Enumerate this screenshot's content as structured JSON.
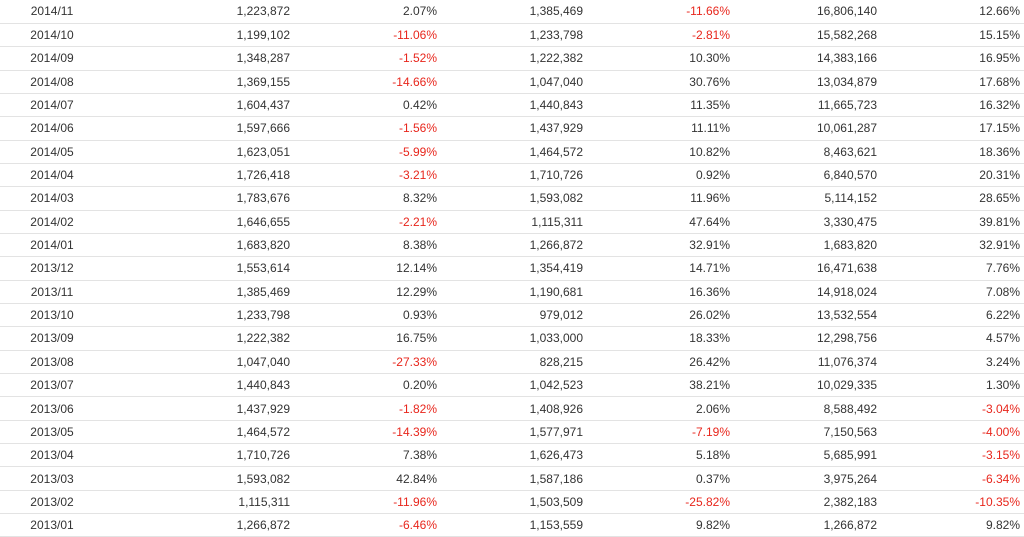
{
  "table": {
    "rows": [
      [
        "2014/11",
        "1,223,872",
        "2.07%",
        "1,385,469",
        "-11.66%",
        "16,806,140",
        "12.66%"
      ],
      [
        "2014/10",
        "1,199,102",
        "-11.06%",
        "1,233,798",
        "-2.81%",
        "15,582,268",
        "15.15%"
      ],
      [
        "2014/09",
        "1,348,287",
        "-1.52%",
        "1,222,382",
        "10.30%",
        "14,383,166",
        "16.95%"
      ],
      [
        "2014/08",
        "1,369,155",
        "-14.66%",
        "1,047,040",
        "30.76%",
        "13,034,879",
        "17.68%"
      ],
      [
        "2014/07",
        "1,604,437",
        "0.42%",
        "1,440,843",
        "11.35%",
        "11,665,723",
        "16.32%"
      ],
      [
        "2014/06",
        "1,597,666",
        "-1.56%",
        "1,437,929",
        "11.11%",
        "10,061,287",
        "17.15%"
      ],
      [
        "2014/05",
        "1,623,051",
        "-5.99%",
        "1,464,572",
        "10.82%",
        "8,463,621",
        "18.36%"
      ],
      [
        "2014/04",
        "1,726,418",
        "-3.21%",
        "1,710,726",
        "0.92%",
        "6,840,570",
        "20.31%"
      ],
      [
        "2014/03",
        "1,783,676",
        "8.32%",
        "1,593,082",
        "11.96%",
        "5,114,152",
        "28.65%"
      ],
      [
        "2014/02",
        "1,646,655",
        "-2.21%",
        "1,115,311",
        "47.64%",
        "3,330,475",
        "39.81%"
      ],
      [
        "2014/01",
        "1,683,820",
        "8.38%",
        "1,266,872",
        "32.91%",
        "1,683,820",
        "32.91%"
      ],
      [
        "2013/12",
        "1,553,614",
        "12.14%",
        "1,354,419",
        "14.71%",
        "16,471,638",
        "7.76%"
      ],
      [
        "2013/11",
        "1,385,469",
        "12.29%",
        "1,190,681",
        "16.36%",
        "14,918,024",
        "7.08%"
      ],
      [
        "2013/10",
        "1,233,798",
        "0.93%",
        "979,012",
        "26.02%",
        "13,532,554",
        "6.22%"
      ],
      [
        "2013/09",
        "1,222,382",
        "16.75%",
        "1,033,000",
        "18.33%",
        "12,298,756",
        "4.57%"
      ],
      [
        "2013/08",
        "1,047,040",
        "-27.33%",
        "828,215",
        "26.42%",
        "11,076,374",
        "3.24%"
      ],
      [
        "2013/07",
        "1,440,843",
        "0.20%",
        "1,042,523",
        "38.21%",
        "10,029,335",
        "1.30%"
      ],
      [
        "2013/06",
        "1,437,929",
        "-1.82%",
        "1,408,926",
        "2.06%",
        "8,588,492",
        "-3.04%"
      ],
      [
        "2013/05",
        "1,464,572",
        "-14.39%",
        "1,577,971",
        "-7.19%",
        "7,150,563",
        "-4.00%"
      ],
      [
        "2013/04",
        "1,710,726",
        "7.38%",
        "1,626,473",
        "5.18%",
        "5,685,991",
        "-3.15%"
      ],
      [
        "2013/03",
        "1,593,082",
        "42.84%",
        "1,587,186",
        "0.37%",
        "3,975,264",
        "-6.34%"
      ],
      [
        "2013/02",
        "1,115,311",
        "-11.96%",
        "1,503,509",
        "-25.82%",
        "2,382,183",
        "-10.35%"
      ],
      [
        "2013/01",
        "1,266,872",
        "-6.46%",
        "1,153,559",
        "9.82%",
        "1,266,872",
        "9.82%"
      ]
    ]
  },
  "colors": {
    "text": "#333333",
    "negative": "#e8261c",
    "row_border": "#e3e3e3",
    "background": "#ffffff"
  }
}
